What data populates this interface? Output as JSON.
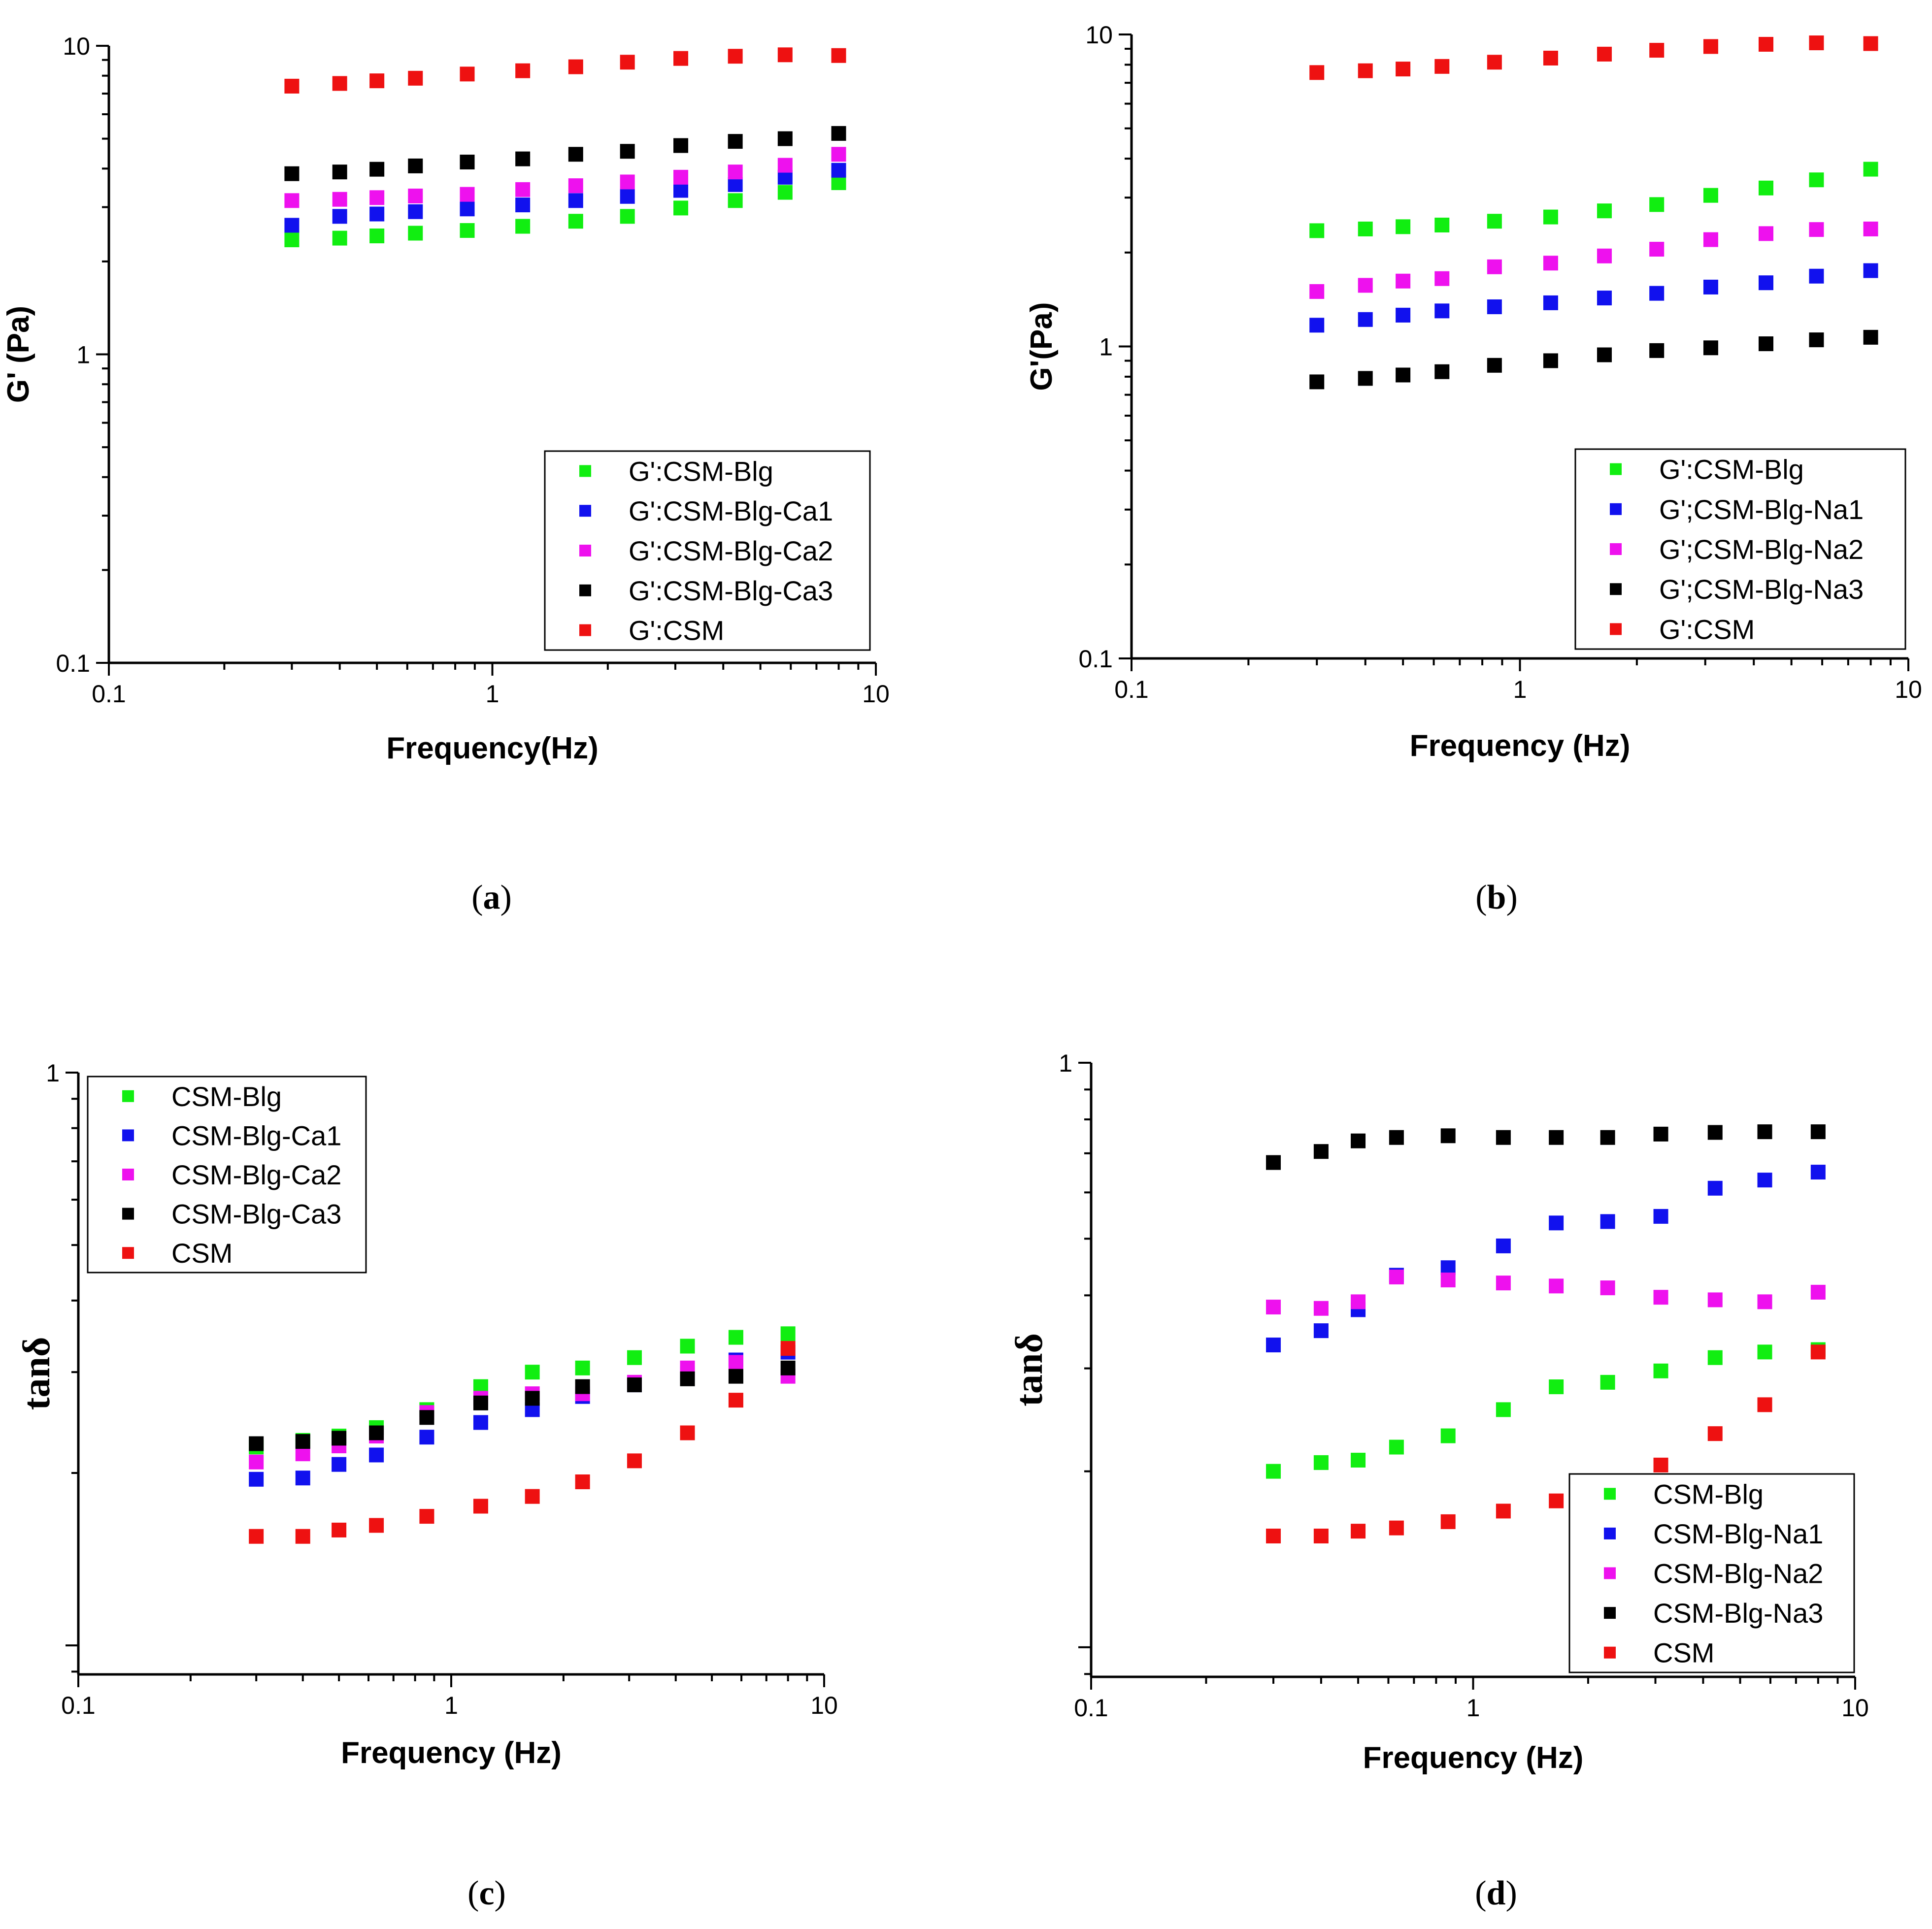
{
  "colors": {
    "green": "#11ee11",
    "blue": "#1111ee",
    "magenta": "#ee11ee",
    "black": "#000000",
    "red": "#ee1111"
  },
  "chart_data": [
    {
      "panel": "a",
      "type": "scatter",
      "xscale": "log",
      "yscale": "log",
      "xlim": [
        0.1,
        10
      ],
      "ylim": [
        0.1,
        10
      ],
      "xticks": [
        "0.1",
        "1",
        "10"
      ],
      "yticks": [
        "0.1",
        "1",
        "10"
      ],
      "xlabel": "Frequency(Hz)",
      "ylabel": "G' (Pa)",
      "legend_position": "lower-right",
      "x": [
        0.3,
        0.4,
        0.5,
        0.63,
        0.86,
        1.2,
        1.65,
        2.25,
        3.1,
        4.3,
        5.8,
        8.0
      ],
      "series": [
        {
          "name": "G':CSM-Blg",
          "color": "green",
          "values": [
            2.35,
            2.38,
            2.42,
            2.47,
            2.52,
            2.6,
            2.7,
            2.8,
            2.98,
            3.15,
            3.35,
            3.6
          ]
        },
        {
          "name": "G':CSM-Blg-Ca1",
          "color": "blue",
          "values": [
            2.62,
            2.8,
            2.85,
            2.9,
            2.96,
            3.05,
            3.15,
            3.25,
            3.4,
            3.55,
            3.75,
            3.95
          ]
        },
        {
          "name": "G':CSM-Blg-Ca2",
          "color": "magenta",
          "values": [
            3.15,
            3.18,
            3.22,
            3.26,
            3.3,
            3.42,
            3.52,
            3.62,
            3.75,
            3.9,
            4.1,
            4.45
          ]
        },
        {
          "name": "G':CSM-Blg-Ca3",
          "color": "black",
          "values": [
            3.85,
            3.9,
            3.98,
            4.08,
            4.2,
            4.3,
            4.45,
            4.55,
            4.75,
            4.9,
            5.0,
            5.2
          ]
        },
        {
          "name": "G':CSM",
          "color": "red",
          "values": [
            7.4,
            7.55,
            7.7,
            7.85,
            8.1,
            8.3,
            8.55,
            8.85,
            9.1,
            9.25,
            9.35,
            9.3
          ]
        }
      ],
      "caption": "a"
    },
    {
      "panel": "b",
      "type": "scatter",
      "xscale": "log",
      "yscale": "log",
      "xlim": [
        0.1,
        10
      ],
      "ylim": [
        0.1,
        10
      ],
      "xticks": [
        "0.1",
        "1",
        "10"
      ],
      "yticks": [
        "0.1",
        "1",
        "10"
      ],
      "xlabel": "Frequency (Hz)",
      "ylabel": "G'(Pa)",
      "legend_position": "lower-right",
      "x": [
        0.3,
        0.4,
        0.5,
        0.63,
        0.86,
        1.2,
        1.65,
        2.25,
        3.1,
        4.3,
        5.8,
        8.0
      ],
      "series": [
        {
          "name": "G':CSM-Blg",
          "color": "green",
          "values": [
            2.35,
            2.38,
            2.42,
            2.45,
            2.52,
            2.6,
            2.72,
            2.85,
            3.05,
            3.22,
            3.42,
            3.7
          ]
        },
        {
          "name": "G';CSM-Blg-Na1",
          "color": "blue",
          "values": [
            1.17,
            1.22,
            1.26,
            1.3,
            1.34,
            1.38,
            1.43,
            1.48,
            1.55,
            1.6,
            1.68,
            1.75
          ]
        },
        {
          "name": "G';CSM-Blg-Na2",
          "color": "magenta",
          "values": [
            1.5,
            1.57,
            1.62,
            1.65,
            1.8,
            1.85,
            1.95,
            2.05,
            2.2,
            2.3,
            2.37,
            2.38
          ]
        },
        {
          "name": "G';CSM-Blg-Na3",
          "color": "black",
          "values": [
            0.77,
            0.79,
            0.81,
            0.83,
            0.87,
            0.9,
            0.94,
            0.97,
            0.99,
            1.02,
            1.05,
            1.07
          ]
        },
        {
          "name": "G':CSM",
          "color": "red",
          "values": [
            7.55,
            7.65,
            7.75,
            7.9,
            8.15,
            8.4,
            8.65,
            8.9,
            9.15,
            9.3,
            9.4,
            9.35
          ]
        }
      ],
      "caption": "b"
    },
    {
      "panel": "c",
      "type": "scatter",
      "xscale": "log",
      "yscale": "log",
      "xlim": [
        0.1,
        10
      ],
      "ylim": [
        0.089,
        1
      ],
      "xticks": [
        "0.1",
        "1",
        "10"
      ],
      "yticks": [
        "1"
      ],
      "xlabel": "Frequency (Hz)",
      "ylabel": "tanδ",
      "legend_position": "top-left",
      "x": [
        0.3,
        0.4,
        0.5,
        0.63,
        0.86,
        1.2,
        1.65,
        2.25,
        3.1,
        4.3,
        5.8,
        8.0
      ],
      "series": [
        {
          "name": "CSM-Blg",
          "color": "green",
          "values": [
            0.222,
            0.228,
            0.232,
            0.24,
            0.258,
            0.283,
            0.3,
            0.305,
            0.318,
            0.333,
            0.345,
            0.35
          ]
        },
        {
          "name": "CSM-Blg-Ca1",
          "color": "blue",
          "values": [
            0.195,
            0.196,
            0.207,
            0.215,
            0.231,
            0.245,
            0.258,
            0.272,
            0.285,
            0.298,
            0.315,
            0.325
          ]
        },
        {
          "name": "CSM-Blg-Ca2",
          "color": "magenta",
          "values": [
            0.209,
            0.216,
            0.223,
            0.232,
            0.255,
            0.27,
            0.275,
            0.275,
            0.288,
            0.305,
            0.312,
            0.295
          ]
        },
        {
          "name": "CSM-Blg-Ca3",
          "color": "black",
          "values": [
            0.225,
            0.227,
            0.23,
            0.235,
            0.25,
            0.265,
            0.27,
            0.283,
            0.285,
            0.292,
            0.295,
            0.305
          ]
        },
        {
          "name": "CSM",
          "color": "red",
          "values": [
            0.155,
            0.155,
            0.159,
            0.162,
            0.168,
            0.175,
            0.182,
            0.193,
            0.21,
            0.235,
            0.268,
            0.33
          ]
        }
      ],
      "caption": "c"
    },
    {
      "panel": "d",
      "type": "scatter",
      "xscale": "log",
      "yscale": "log",
      "xlim": [
        0.1,
        10
      ],
      "ylim": [
        0.089,
        1
      ],
      "xticks": [
        "0.1",
        "1",
        "10"
      ],
      "yticks": [
        "1"
      ],
      "xlabel": "Frequency (Hz)",
      "ylabel": "tanδ",
      "legend_position": "bottom-right",
      "x": [
        0.3,
        0.4,
        0.5,
        0.63,
        0.86,
        1.2,
        1.65,
        2.25,
        3.1,
        4.3,
        5.8,
        8.0
      ],
      "series": [
        {
          "name": "CSM-Blg",
          "color": "green",
          "values": [
            0.2,
            0.207,
            0.209,
            0.22,
            0.23,
            0.255,
            0.279,
            0.284,
            0.297,
            0.313,
            0.32,
            0.323
          ]
        },
        {
          "name": "CSM-Blg-Na1",
          "color": "blue",
          "values": [
            0.329,
            0.348,
            0.378,
            0.433,
            0.446,
            0.486,
            0.532,
            0.535,
            0.546,
            0.61,
            0.63,
            0.65
          ]
        },
        {
          "name": "CSM-Blg-Na2",
          "color": "magenta",
          "values": [
            0.382,
            0.38,
            0.39,
            0.43,
            0.425,
            0.42,
            0.415,
            0.412,
            0.397,
            0.393,
            0.39,
            0.405
          ]
        },
        {
          "name": "CSM-Blg-Na3",
          "color": "black",
          "values": [
            0.675,
            0.705,
            0.735,
            0.745,
            0.75,
            0.745,
            0.745,
            0.745,
            0.755,
            0.76,
            0.762,
            0.762
          ]
        },
        {
          "name": "CSM",
          "color": "red",
          "values": [
            0.155,
            0.155,
            0.158,
            0.16,
            0.164,
            0.171,
            0.178,
            0.19,
            0.205,
            0.232,
            0.26,
            0.32
          ]
        }
      ],
      "caption": "d"
    }
  ]
}
